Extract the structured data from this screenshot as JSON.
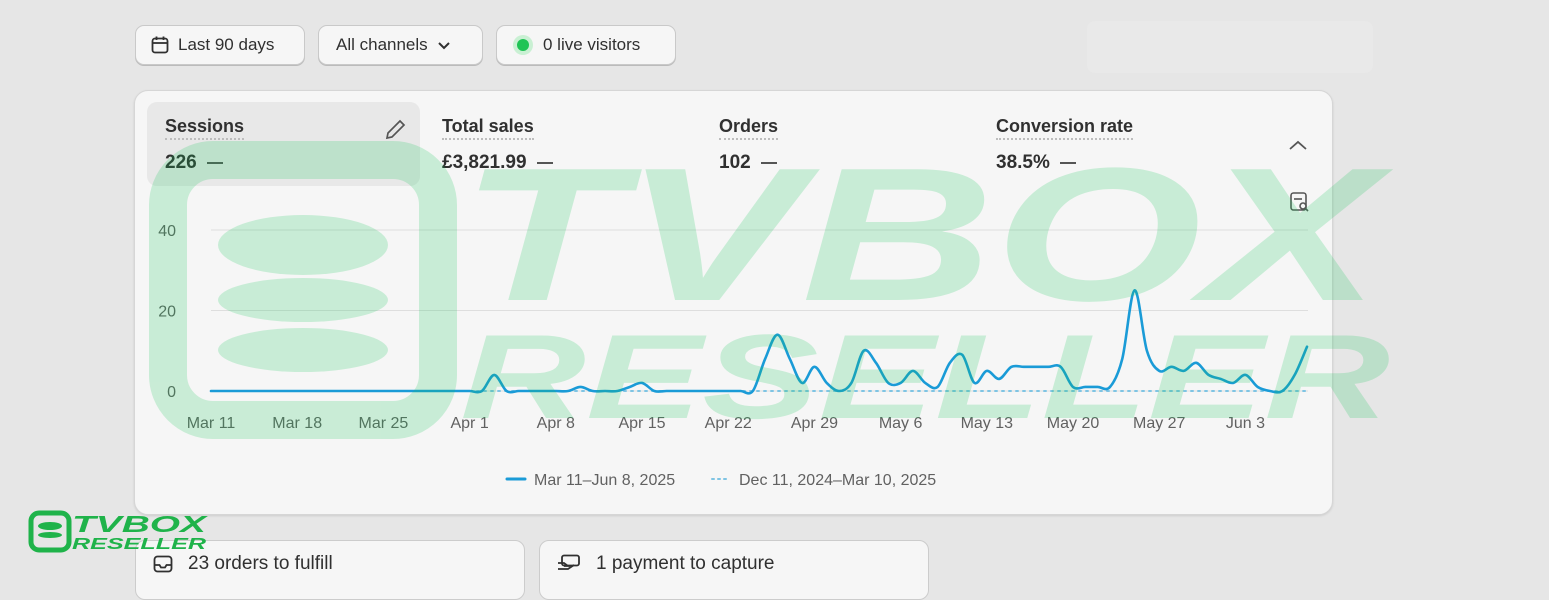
{
  "toolbar": {
    "date_range": "Last 90 days",
    "channels": "All channels",
    "live_visitors": "0 live visitors"
  },
  "metrics": [
    {
      "label": "Sessions",
      "value": "226"
    },
    {
      "label": "Total sales",
      "value": "£3,821.99"
    },
    {
      "label": "Orders",
      "value": "102"
    },
    {
      "label": "Conversion rate",
      "value": "38.5%"
    }
  ],
  "chart_data": {
    "type": "line",
    "categories": [
      "Mar 11",
      null,
      null,
      null,
      null,
      null,
      null,
      "Mar 18",
      null,
      null,
      null,
      null,
      null,
      null,
      "Mar 25",
      null,
      null,
      null,
      null,
      null,
      null,
      "Apr 1",
      null,
      null,
      null,
      null,
      null,
      null,
      "Apr 8",
      null,
      null,
      null,
      null,
      null,
      null,
      "Apr 15",
      null,
      null,
      null,
      null,
      null,
      null,
      "Apr 22",
      null,
      null,
      null,
      null,
      null,
      null,
      "Apr 29",
      null,
      null,
      null,
      null,
      null,
      null,
      "May 6",
      null,
      null,
      null,
      null,
      null,
      null,
      "May 13",
      null,
      null,
      null,
      null,
      null,
      null,
      "May 20",
      null,
      null,
      null,
      null,
      null,
      null,
      "May 27",
      null,
      null,
      null,
      null,
      null,
      null,
      "Jun 3",
      null,
      null,
      null,
      null,
      null
    ],
    "series": [
      {
        "name": "Mar 11–Jun 8, 2025",
        "color": "#1a9bd7",
        "style": "solid",
        "values": [
          0,
          0,
          0,
          0,
          0,
          0,
          0,
          0,
          0,
          0,
          0,
          0,
          0,
          0,
          0,
          0,
          0,
          0,
          0,
          0,
          0,
          0,
          0,
          4,
          0,
          0,
          0,
          0,
          0,
          0,
          1,
          0,
          0,
          0,
          1,
          2,
          0,
          0,
          0,
          0,
          0,
          0,
          0,
          0,
          0,
          8,
          14,
          8,
          2,
          6,
          2,
          0,
          2,
          10,
          7,
          2,
          2,
          5,
          2,
          1,
          7,
          9,
          2,
          5,
          3,
          6,
          6,
          6,
          6,
          6,
          1,
          1,
          1,
          1,
          8,
          25,
          10,
          5,
          6,
          5,
          7,
          4,
          3,
          2,
          4,
          1,
          0,
          0,
          4,
          11
        ]
      },
      {
        "name": "Dec 11, 2024–Mar 10, 2025",
        "color": "#7fc4e3",
        "style": "dotted",
        "values": [
          0,
          0,
          0,
          0,
          0,
          0,
          0,
          0,
          0,
          0,
          0,
          0,
          0,
          0,
          0,
          0,
          0,
          0,
          0,
          0,
          0,
          0,
          0,
          0,
          0,
          0,
          0,
          0,
          0,
          0,
          0,
          0,
          0,
          0,
          0,
          0,
          0,
          0,
          0,
          0,
          0,
          0,
          0,
          0,
          0,
          0,
          0,
          0,
          0,
          0,
          0,
          0,
          0,
          0,
          0,
          0,
          0,
          0,
          0,
          0,
          0,
          0,
          0,
          0,
          0,
          0,
          0,
          0,
          0,
          0,
          0,
          0,
          0,
          0,
          0,
          0,
          0,
          0,
          0,
          0,
          0,
          0,
          0,
          0,
          0,
          0,
          0,
          0,
          0,
          0
        ]
      }
    ],
    "ylim": [
      0,
      40
    ],
    "yticks": [
      0,
      20,
      40
    ],
    "grid": true,
    "legend": "bottom"
  },
  "tasks": [
    {
      "label": "23 orders to fulfill"
    },
    {
      "label": "1 payment to capture"
    }
  ],
  "watermark": {
    "line1": "TVBOX",
    "line2": "RESELLER"
  }
}
